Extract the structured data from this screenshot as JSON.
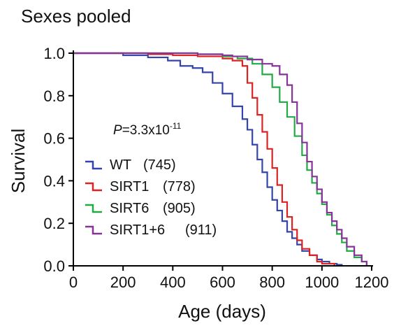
{
  "chart_data": {
    "type": "line",
    "step": true,
    "title": "Sexes pooled",
    "xlabel": "Age (days)",
    "ylabel": "Survival",
    "xlim": [
      0,
      1200
    ],
    "ylim": [
      0,
      1.0
    ],
    "xticks": [
      "0",
      "200",
      "400",
      "600",
      "800",
      "1000",
      "1200"
    ],
    "yticks": [
      "0.0",
      "0.2",
      "0.4",
      "0.6",
      "0.8",
      "1.0"
    ],
    "grid": false,
    "legend_position": "lower-left",
    "annotation": {
      "p_symbol": "P",
      "p_text": "=3.3x10",
      "p_exponent": "-11"
    },
    "series": [
      {
        "name": "WT",
        "count": "(745)",
        "color": "#3344aa",
        "x": [
          0,
          110,
          200,
          300,
          380,
          430,
          480,
          520,
          560,
          600,
          640,
          680,
          700,
          720,
          740,
          760,
          780,
          800,
          820,
          840,
          860,
          880,
          900,
          920,
          950,
          980,
          1000,
          1030,
          1060,
          1080
        ],
        "y": [
          1.0,
          1.0,
          0.99,
          0.98,
          0.965,
          0.94,
          0.93,
          0.91,
          0.86,
          0.81,
          0.75,
          0.69,
          0.64,
          0.57,
          0.5,
          0.44,
          0.37,
          0.31,
          0.26,
          0.21,
          0.16,
          0.13,
          0.1,
          0.07,
          0.05,
          0.03,
          0.02,
          0.01,
          0.005,
          0.0
        ]
      },
      {
        "name": "SIRT1",
        "count": "(778)",
        "color": "#dd2222",
        "x": [
          0,
          300,
          400,
          500,
          600,
          640,
          680,
          700,
          720,
          740,
          760,
          780,
          800,
          820,
          840,
          860,
          880,
          900,
          920,
          950,
          980,
          1000,
          1050
        ],
        "y": [
          1.0,
          0.995,
          0.99,
          0.985,
          0.975,
          0.965,
          0.94,
          0.86,
          0.79,
          0.71,
          0.63,
          0.55,
          0.46,
          0.38,
          0.3,
          0.23,
          0.17,
          0.12,
          0.08,
          0.05,
          0.02,
          0.01,
          0.0
        ]
      },
      {
        "name": "SIRT6",
        "count": "(905)",
        "color": "#22aa44",
        "x": [
          0,
          300,
          500,
          600,
          660,
          720,
          760,
          800,
          830,
          860,
          890,
          920,
          940,
          960,
          980,
          1000,
          1020,
          1040,
          1060,
          1080,
          1100,
          1130,
          1160,
          1180
        ],
        "y": [
          1.0,
          1.0,
          0.995,
          0.985,
          0.975,
          0.95,
          0.9,
          0.84,
          0.77,
          0.7,
          0.61,
          0.52,
          0.45,
          0.39,
          0.34,
          0.29,
          0.24,
          0.19,
          0.15,
          0.11,
          0.07,
          0.04,
          0.02,
          0.0
        ]
      },
      {
        "name": "SIRT1+6",
        "count": "(911)",
        "color": "#883399",
        "x": [
          0,
          300,
          500,
          600,
          640,
          700,
          760,
          800,
          830,
          860,
          880,
          900,
          920,
          940,
          960,
          980,
          1000,
          1020,
          1040,
          1060,
          1080,
          1100,
          1130,
          1160,
          1180
        ],
        "y": [
          1.0,
          1.0,
          0.995,
          0.99,
          0.985,
          0.97,
          0.95,
          0.94,
          0.9,
          0.85,
          0.77,
          0.67,
          0.58,
          0.49,
          0.42,
          0.36,
          0.3,
          0.25,
          0.21,
          0.17,
          0.13,
          0.09,
          0.05,
          0.02,
          0.0
        ]
      }
    ]
  }
}
